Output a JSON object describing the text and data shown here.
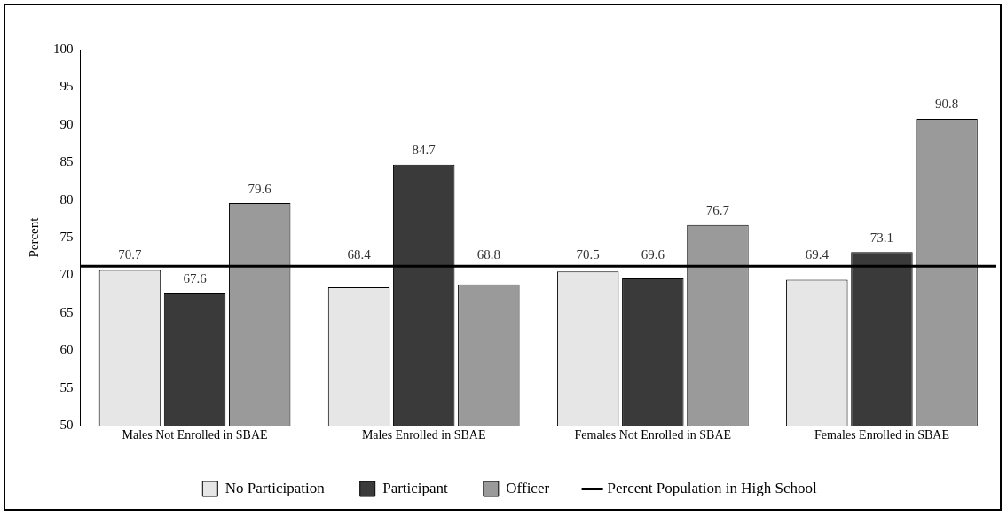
{
  "chart_data": {
    "type": "bar",
    "ylabel": "Percent",
    "categories": [
      "Males Not Enrolled in SBAE",
      "Males Enrolled in SBAE",
      "Females Not Enrolled in SBAE",
      "Females Enrolled in SBAE"
    ],
    "series": [
      {
        "name": "No Participation",
        "color": "#e6e6e6",
        "values": [
          70.7,
          68.4,
          70.5,
          69.4
        ]
      },
      {
        "name": "Participant",
        "color": "#3a3a3a",
        "values": [
          67.6,
          84.7,
          69.6,
          73.1
        ]
      },
      {
        "name": "Officer",
        "color": "#9a9a9a",
        "values": [
          79.6,
          68.8,
          76.7,
          90.8
        ]
      }
    ],
    "ylim": [
      50,
      100
    ],
    "yticks": [
      50,
      55,
      60,
      65,
      70,
      75,
      80,
      85,
      90,
      95,
      100
    ],
    "ref_lines": [
      {
        "axis": "y",
        "value": 71.2,
        "label": "Percent Population in High School",
        "color": "#000000"
      }
    ],
    "data_labels": true,
    "grid": false,
    "legend": "bottom"
  }
}
